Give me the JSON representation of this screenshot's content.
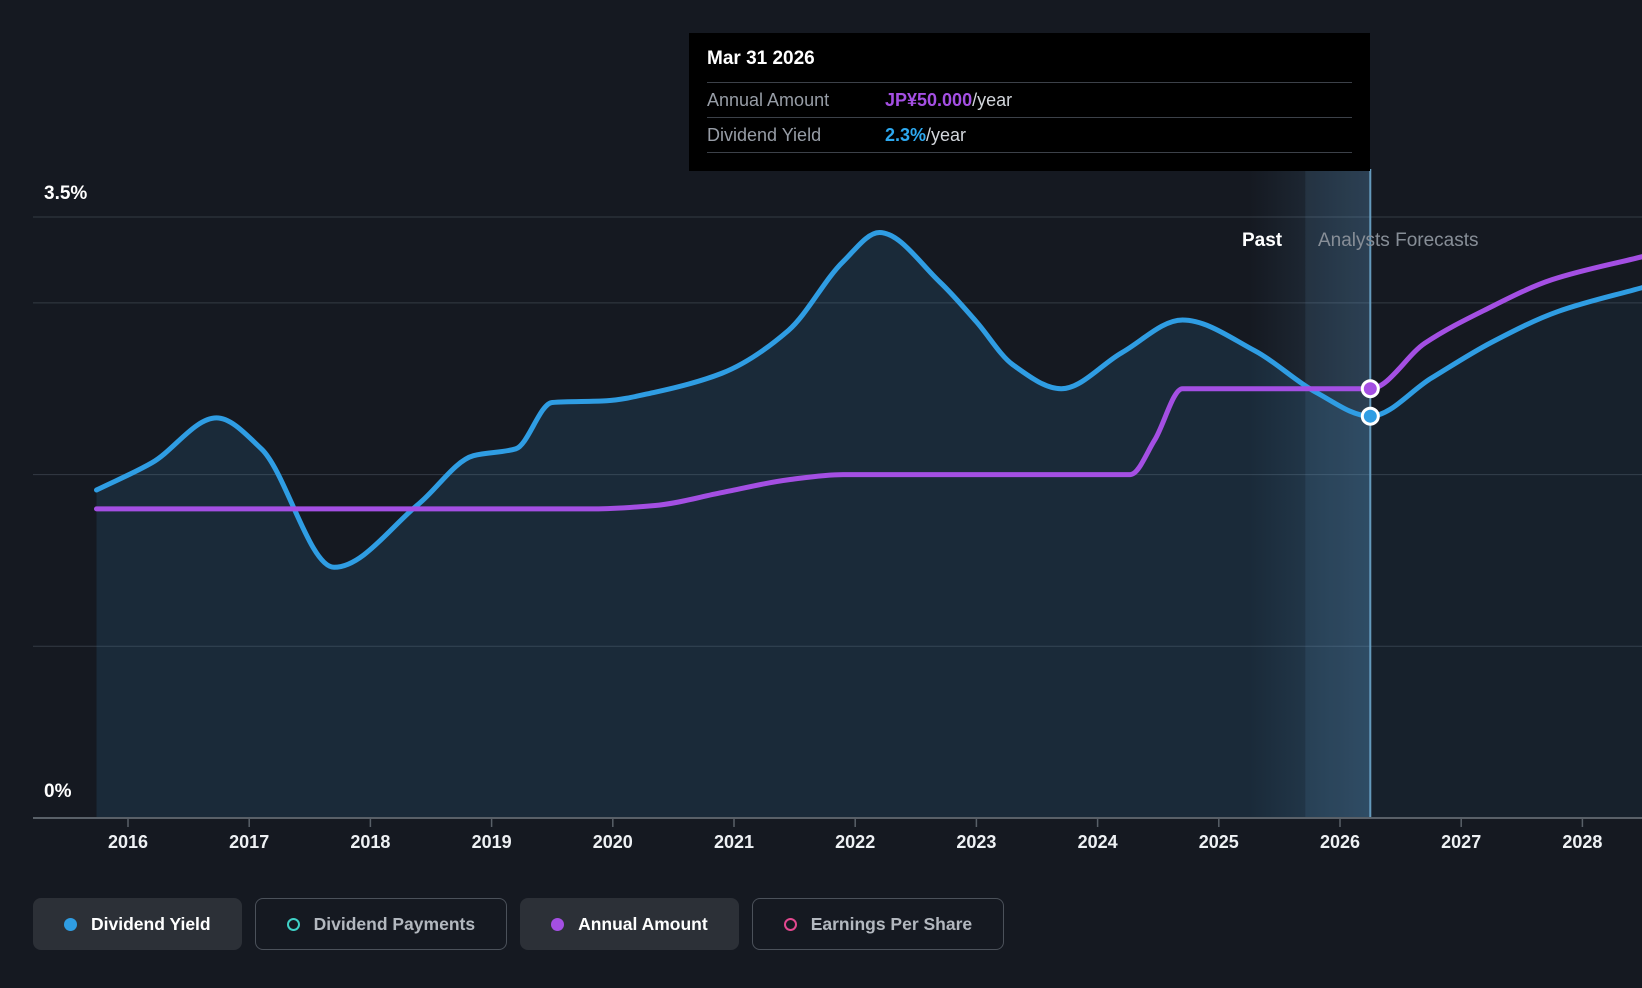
{
  "tooltip": {
    "date": "Mar 31 2026",
    "rows": [
      {
        "label": "Annual Amount",
        "value": "JP¥50.000",
        "suffix": "/year",
        "value_color": "#a44fe3"
      },
      {
        "label": "Dividend Yield",
        "value": "2.3%",
        "suffix": "/year",
        "value_color": "#2da9f0"
      }
    ]
  },
  "labels": {
    "past": "Past",
    "forecasts": "Analysts Forecasts"
  },
  "legend": [
    {
      "label": "Dividend Yield",
      "color": "#2f9de3",
      "style": "filled",
      "active": true
    },
    {
      "label": "Dividend Payments",
      "color": "#3fd0c6",
      "style": "ring",
      "active": false
    },
    {
      "label": "Annual Amount",
      "color": "#a44fe3",
      "style": "filled",
      "active": true
    },
    {
      "label": "Earnings Per Share",
      "color": "#e2488f",
      "style": "ring",
      "active": false
    }
  ],
  "chart_data": {
    "type": "area",
    "xlim": [
      2015.2,
      2028.5
    ],
    "ylim": [
      0,
      3.5
    ],
    "x_ticks": [
      2016,
      2017,
      2018,
      2019,
      2020,
      2021,
      2022,
      2023,
      2024,
      2025,
      2026,
      2027,
      2028
    ],
    "y_gridlines": [
      3.5,
      3,
      2,
      1
    ],
    "y_labels": [
      {
        "value": 3.5,
        "label": "3.5%"
      },
      {
        "value": 0,
        "label": "0%"
      }
    ],
    "divider_x": 2026.25,
    "past_region_end": 2026.25,
    "series": [
      {
        "name": "Dividend Yield",
        "unit": "%",
        "color": "#2f9de3",
        "fill": true,
        "points": [
          [
            2015.74,
            1.91
          ],
          [
            2016.2,
            2.07
          ],
          [
            2016.73,
            2.33
          ],
          [
            2017.1,
            2.15
          ],
          [
            2017.7,
            1.46
          ],
          [
            2018.4,
            1.83
          ],
          [
            2018.85,
            2.11
          ],
          [
            2019.2,
            2.15
          ],
          [
            2019.5,
            2.42
          ],
          [
            2019.95,
            2.43
          ],
          [
            2020.35,
            2.48
          ],
          [
            2020.9,
            2.59
          ],
          [
            2021.45,
            2.84
          ],
          [
            2021.9,
            3.24
          ],
          [
            2022.2,
            3.41
          ],
          [
            2022.7,
            3.12
          ],
          [
            2023.0,
            2.89
          ],
          [
            2023.3,
            2.64
          ],
          [
            2023.7,
            2.5
          ],
          [
            2024.2,
            2.71
          ],
          [
            2024.7,
            2.9
          ],
          [
            2025.3,
            2.72
          ],
          [
            2025.8,
            2.48
          ],
          [
            2026.25,
            2.34
          ],
          [
            2026.75,
            2.56
          ],
          [
            2027.25,
            2.77
          ],
          [
            2027.8,
            2.95
          ],
          [
            2028.5,
            3.09
          ]
        ]
      },
      {
        "name": "Annual Amount",
        "unit": "JP¥/year",
        "color": "#a44fe3",
        "fill": false,
        "to_percent": 0.05,
        "points": [
          [
            2015.74,
            36
          ],
          [
            2019.85,
            36
          ],
          [
            2020.35,
            36.4
          ],
          [
            2020.9,
            37.9
          ],
          [
            2021.45,
            39.4
          ],
          [
            2021.9,
            40
          ],
          [
            2024.27,
            40
          ],
          [
            2024.47,
            44
          ],
          [
            2024.7,
            50
          ],
          [
            2025.5,
            50
          ],
          [
            2026.25,
            50
          ],
          [
            2026.7,
            55.3
          ],
          [
            2027.2,
            59.2
          ],
          [
            2027.75,
            62.7
          ],
          [
            2028.5,
            65.4
          ]
        ]
      }
    ],
    "markers": [
      {
        "series": "Annual Amount",
        "x": 2026.25,
        "value": 50
      },
      {
        "series": "Dividend Yield",
        "x": 2026.25,
        "value": 2.34
      }
    ]
  }
}
